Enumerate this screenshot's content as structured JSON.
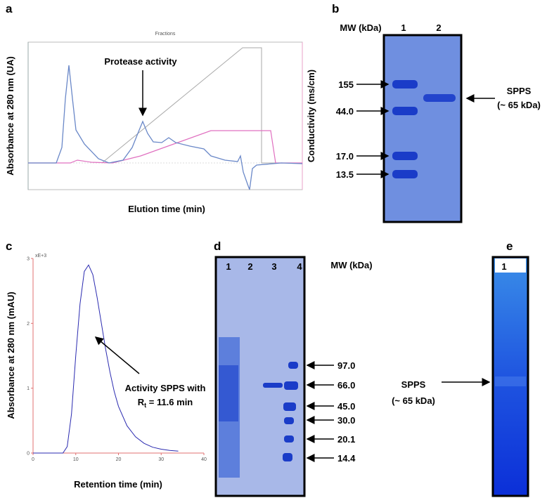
{
  "panel_a": {
    "label": "a",
    "header": "Fractions",
    "y_label": "Absorbance at 280 nm (UA)",
    "y2_label": "Conductivity (ms/cm)",
    "x_label": "Elution time (min)",
    "annotation": "Protease activity"
  },
  "panel_b": {
    "label": "b",
    "mw_header": "MW (kDa)",
    "lanes": [
      "1",
      "2"
    ],
    "markers": [
      "155",
      "44.0",
      "17.0",
      "13.5"
    ],
    "band_label": [
      "SPPS",
      "(~ 65 kDa)"
    ]
  },
  "chart_data": {
    "type": "line",
    "label": "c",
    "y_label": "Absorbance at 280 nm (mAU)",
    "x_label": "Retention time (min)",
    "y_multiplier": "xE+3",
    "annotation": {
      "line1": "Activity SPPS with",
      "symbol": "R",
      "subscript": "t",
      "rest": " = 11.6 min"
    },
    "x": [
      0,
      2,
      4,
      6,
      7,
      8,
      9,
      10,
      11,
      12,
      13,
      14,
      15,
      16,
      17,
      18,
      19,
      20,
      22,
      24,
      26,
      28,
      30,
      32,
      34
    ],
    "series": [
      {
        "color": "#2a2ab0",
        "values": [
          0,
          0,
          0,
          0,
          0,
          0.1,
          0.6,
          1.5,
          2.3,
          2.8,
          2.9,
          2.75,
          2.4,
          2.0,
          1.6,
          1.25,
          0.95,
          0.72,
          0.42,
          0.25,
          0.15,
          0.09,
          0.06,
          0.04,
          0.03
        ]
      }
    ],
    "xlim": [
      0,
      40
    ],
    "ylim": [
      0,
      3
    ],
    "xticks": [
      0,
      10,
      20,
      30,
      40
    ],
    "yticks": [
      0,
      1,
      2,
      3
    ],
    "axis_color": "#e07070"
  },
  "panel_d": {
    "label": "d",
    "lanes": [
      "1",
      "2",
      "3",
      "4"
    ],
    "mw_header": "MW (kDa)",
    "markers": [
      "97.0",
      "66.0",
      "45.0",
      "30.0",
      "20.1",
      "14.4"
    ]
  },
  "panel_e": {
    "label": "e",
    "lanes": [
      "1"
    ],
    "band_label": [
      "SPPS",
      "(~ 65 kDa)"
    ]
  }
}
